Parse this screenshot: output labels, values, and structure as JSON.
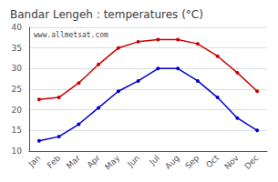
{
  "chart_data": {
    "type": "line",
    "title": "Bandar Lengeh : temperatures (°C)",
    "categories": [
      "Jan",
      "Feb",
      "Mar",
      "Apr",
      "May",
      "Jun",
      "Jul",
      "Aug",
      "Sep",
      "Oct",
      "Nov",
      "Dec"
    ],
    "series": [
      {
        "color": "#cc0000",
        "marker": "circle",
        "values": [
          22.5,
          23.0,
          26.5,
          31.0,
          35.0,
          36.5,
          37.0,
          37.0,
          36.0,
          33.0,
          29.0,
          24.5
        ]
      },
      {
        "color": "#0000cc",
        "marker": "circle",
        "values": [
          12.5,
          13.5,
          16.5,
          20.5,
          24.5,
          27.0,
          30.0,
          30.0,
          27.0,
          23.0,
          18.0,
          15.0
        ]
      }
    ],
    "ylim": [
      10,
      40
    ],
    "yticks": [
      10,
      15,
      20,
      25,
      30,
      35,
      40
    ],
    "grid": true,
    "annotations": [
      "www.allmetsat.com"
    ]
  }
}
